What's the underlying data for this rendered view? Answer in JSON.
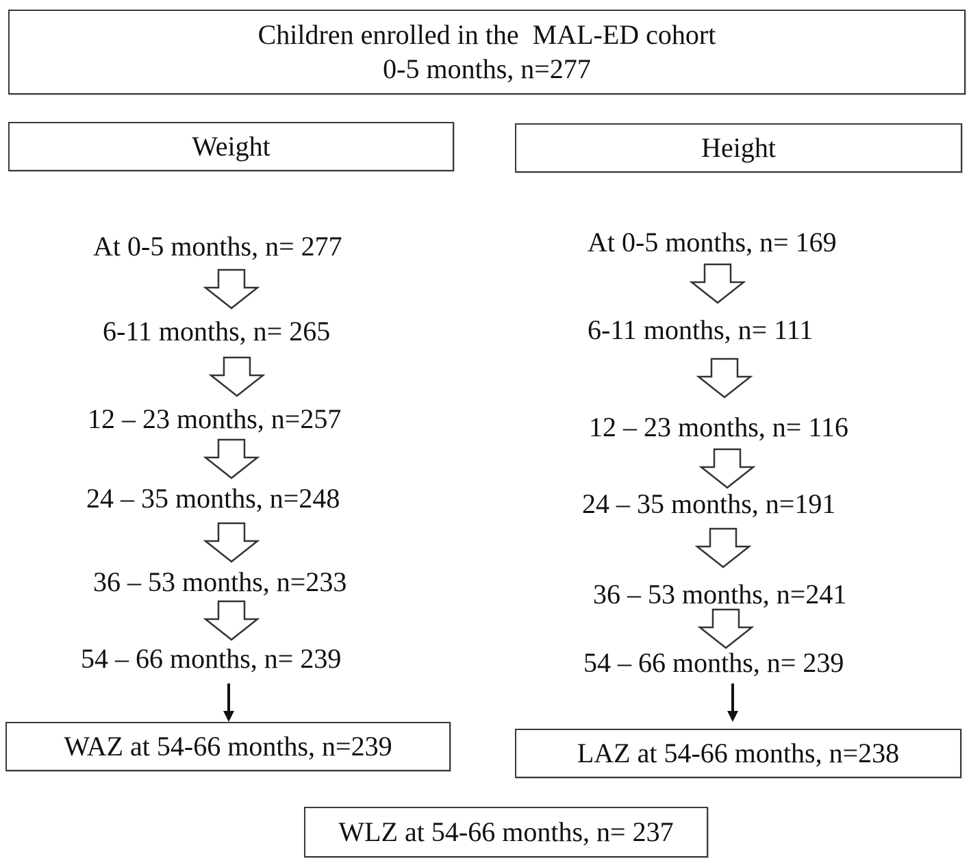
{
  "top_box": {
    "line1": "Children enrolled in the  MAL-ED cohort",
    "line2": "0-5 months, n=277"
  },
  "weight": {
    "header": "Weight",
    "steps": [
      "At 0-5 months, n= 277",
      "6-11 months, n= 265",
      "12 – 23 months, n=257",
      "24 – 35 months, n=248",
      "36 – 53 months, n=233",
      "54 – 66 months, n= 239"
    ],
    "result": "WAZ at 54-66 months, n=239"
  },
  "height": {
    "header": "Height",
    "steps": [
      "At 0-5 months, n= 169",
      "6-11 months, n= 111",
      "12 – 23 months, n= 116",
      "24 – 35 months, n=191",
      "36 – 53 months, n=241",
      "54 – 66 months, n= 239"
    ],
    "result": "LAZ at 54-66 months, n=238"
  },
  "bottom_box": "WLZ at 54-66 months, n= 237"
}
